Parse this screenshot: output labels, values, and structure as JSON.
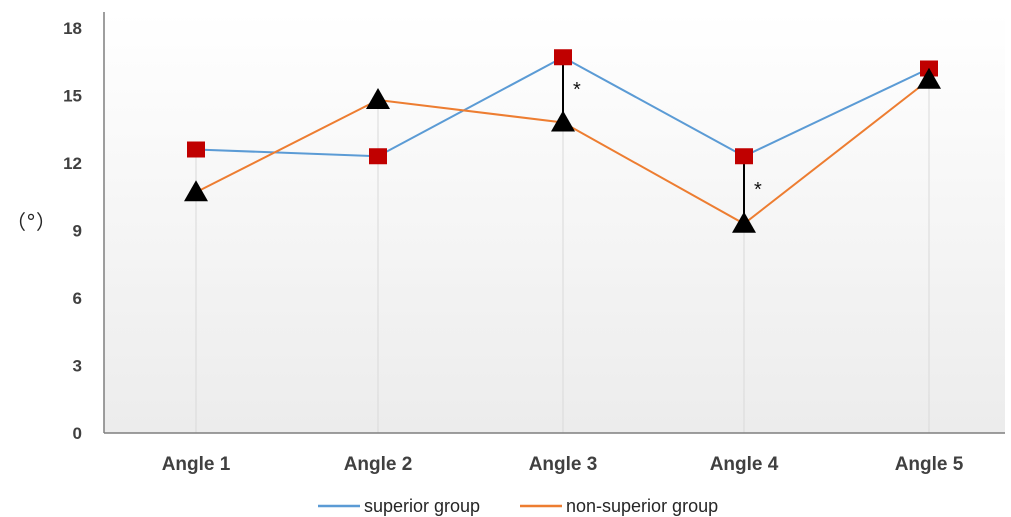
{
  "chart_data": {
    "type": "line",
    "title": "",
    "xlabel": "",
    "ylabel": "（°）",
    "categories": [
      "Angle 1",
      "Angle 2",
      "Angle 3",
      "Angle 4",
      "Angle 5"
    ],
    "ylim": [
      0,
      18
    ],
    "yticks": [
      0,
      3,
      6,
      9,
      12,
      15,
      18
    ],
    "series": [
      {
        "name": "superior group",
        "color": "#5b9bd5",
        "marker": "square",
        "marker_color": "#c00000",
        "values": [
          12.6,
          12.3,
          16.7,
          12.3,
          16.2
        ]
      },
      {
        "name": "non-superior group",
        "color": "#ed7d31",
        "marker": "triangle",
        "marker_color": "#000000",
        "values": [
          10.7,
          14.8,
          13.8,
          9.3,
          15.7
        ]
      }
    ],
    "significance": [
      {
        "category": "Angle 3",
        "label": "*"
      },
      {
        "category": "Angle 4",
        "label": "*"
      }
    ],
    "grid": false,
    "drop_lines": true,
    "legend_position": "bottom"
  }
}
